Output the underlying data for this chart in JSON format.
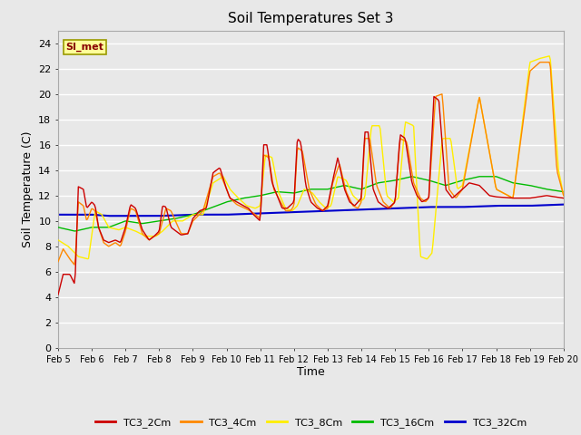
{
  "title": "Soil Temperatures Set 3",
  "xlabel": "Time",
  "ylabel": "Soil Temperature (C)",
  "ylim": [
    0,
    25
  ],
  "xlim": [
    0,
    15
  ],
  "background_color": "#e8e8e8",
  "plot_bg_color": "#e8e8e8",
  "grid_color": "#ffffff",
  "series": {
    "TC3_2Cm": {
      "color": "#cc0000",
      "lw": 1.0
    },
    "TC3_4Cm": {
      "color": "#ff8800",
      "lw": 1.0
    },
    "TC3_8Cm": {
      "color": "#ffee00",
      "lw": 1.0
    },
    "TC3_16Cm": {
      "color": "#00bb00",
      "lw": 1.0
    },
    "TC3_32Cm": {
      "color": "#0000cc",
      "lw": 1.5
    }
  },
  "xtick_labels": [
    "Feb 5",
    "Feb 6",
    "Feb 7",
    "Feb 8",
    "Feb 9",
    "Feb 10",
    "Feb 11",
    "Feb 12",
    "Feb 13",
    "Feb 14",
    "Feb 15",
    "Feb 16",
    "Feb 17",
    "Feb 18",
    "Feb 19",
    "Feb 20"
  ],
  "annotation_text": "SI_met",
  "annotation_color": "#880000",
  "annotation_bg": "#ffff99",
  "annotation_border": "#999900"
}
